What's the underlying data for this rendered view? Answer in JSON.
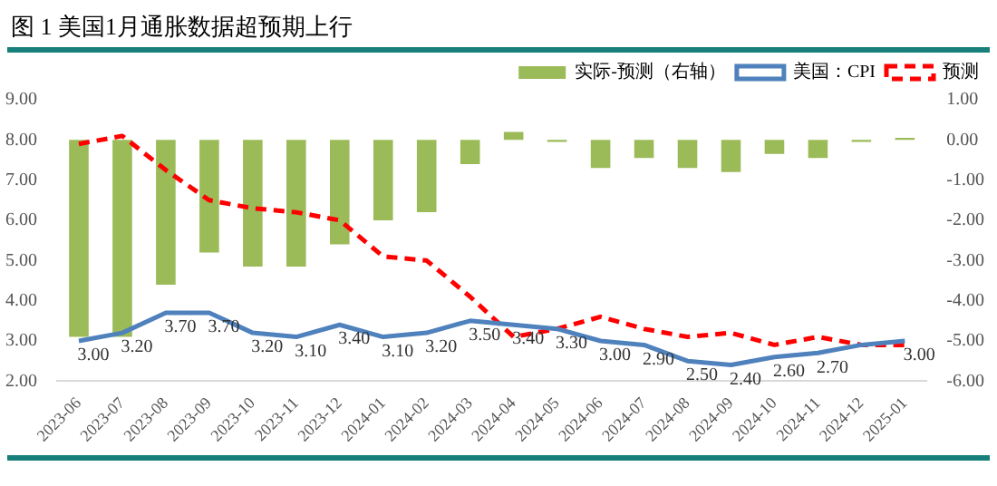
{
  "chart_data": {
    "type": "bar",
    "title": "图 1 美国1月通胀数据超预期上行",
    "categories": [
      "2023-06",
      "2023-07",
      "2023-08",
      "2023-09",
      "2023-10",
      "2023-11",
      "2023-12",
      "2024-01",
      "2024-02",
      "2024-03",
      "2024-04",
      "2024-05",
      "2024-06",
      "2024-07",
      "2024-08",
      "2024-09",
      "2024-10",
      "2024-11",
      "2024-12",
      "2025-01"
    ],
    "series": [
      {
        "name": "实际-预测（右轴）",
        "axis": "y2",
        "color": "#9bbb59",
        "values": [
          -4.9,
          -4.9,
          -3.6,
          -2.8,
          -3.15,
          -3.15,
          -2.6,
          -2.0,
          -1.8,
          -0.6,
          0.2,
          -0.05,
          -0.7,
          -0.45,
          -0.7,
          -0.8,
          -0.35,
          -0.45,
          -0.05,
          0.05
        ]
      },
      {
        "name": "美国：CPI",
        "type": "line",
        "color": "#4f81bd",
        "line_style": "solid",
        "marker": "none",
        "values": [
          3.0,
          3.2,
          3.7,
          3.7,
          3.2,
          3.1,
          3.4,
          3.1,
          3.2,
          3.5,
          3.4,
          3.3,
          3.0,
          2.9,
          2.5,
          2.4,
          2.6,
          2.7,
          2.9,
          3.0
        ],
        "value_labels": [
          "3.00",
          "3.20",
          "3.70",
          "3.70",
          "3.20",
          "3.10",
          "3.40",
          "3.10",
          "3.20",
          "3.50",
          "3.40",
          "3.30",
          "3.00",
          "2.90",
          "2.50",
          "2.40",
          "2.60",
          "2.70",
          null,
          "3.00"
        ]
      },
      {
        "name": "预测",
        "type": "line",
        "color": "#ff0000",
        "line_style": "dashed",
        "marker": "none",
        "values": [
          7.9,
          8.1,
          7.25,
          6.5,
          6.3,
          6.2,
          6.0,
          5.1,
          5.0,
          4.1,
          3.1,
          3.3,
          3.6,
          3.3,
          3.1,
          3.2,
          2.9,
          3.1,
          2.9,
          2.9
        ]
      }
    ],
    "ylim": [
      2,
      9
    ],
    "yticks": [
      {
        "value": 2,
        "label": "2.00"
      },
      {
        "value": 3,
        "label": "3.00"
      },
      {
        "value": 4,
        "label": "4.00"
      },
      {
        "value": 5,
        "label": "5.00"
      },
      {
        "value": 6,
        "label": "6.00"
      },
      {
        "value": 7,
        "label": "7.00"
      },
      {
        "value": 8,
        "label": "8.00"
      },
      {
        "value": 9,
        "label": "9.00"
      }
    ],
    "y2lim": [
      -6,
      1
    ],
    "y2ticks": [
      {
        "value": -6,
        "label": "-6.00"
      },
      {
        "value": -5,
        "label": "-5.00"
      },
      {
        "value": -4,
        "label": "-4.00"
      },
      {
        "value": -3,
        "label": "-3.00"
      },
      {
        "value": -2,
        "label": "-2.00"
      },
      {
        "value": -1,
        "label": "-1.00"
      },
      {
        "value": 0,
        "label": "0.00"
      },
      {
        "value": 1,
        "label": "1.00"
      }
    ],
    "grid": false,
    "legend": "top right"
  }
}
